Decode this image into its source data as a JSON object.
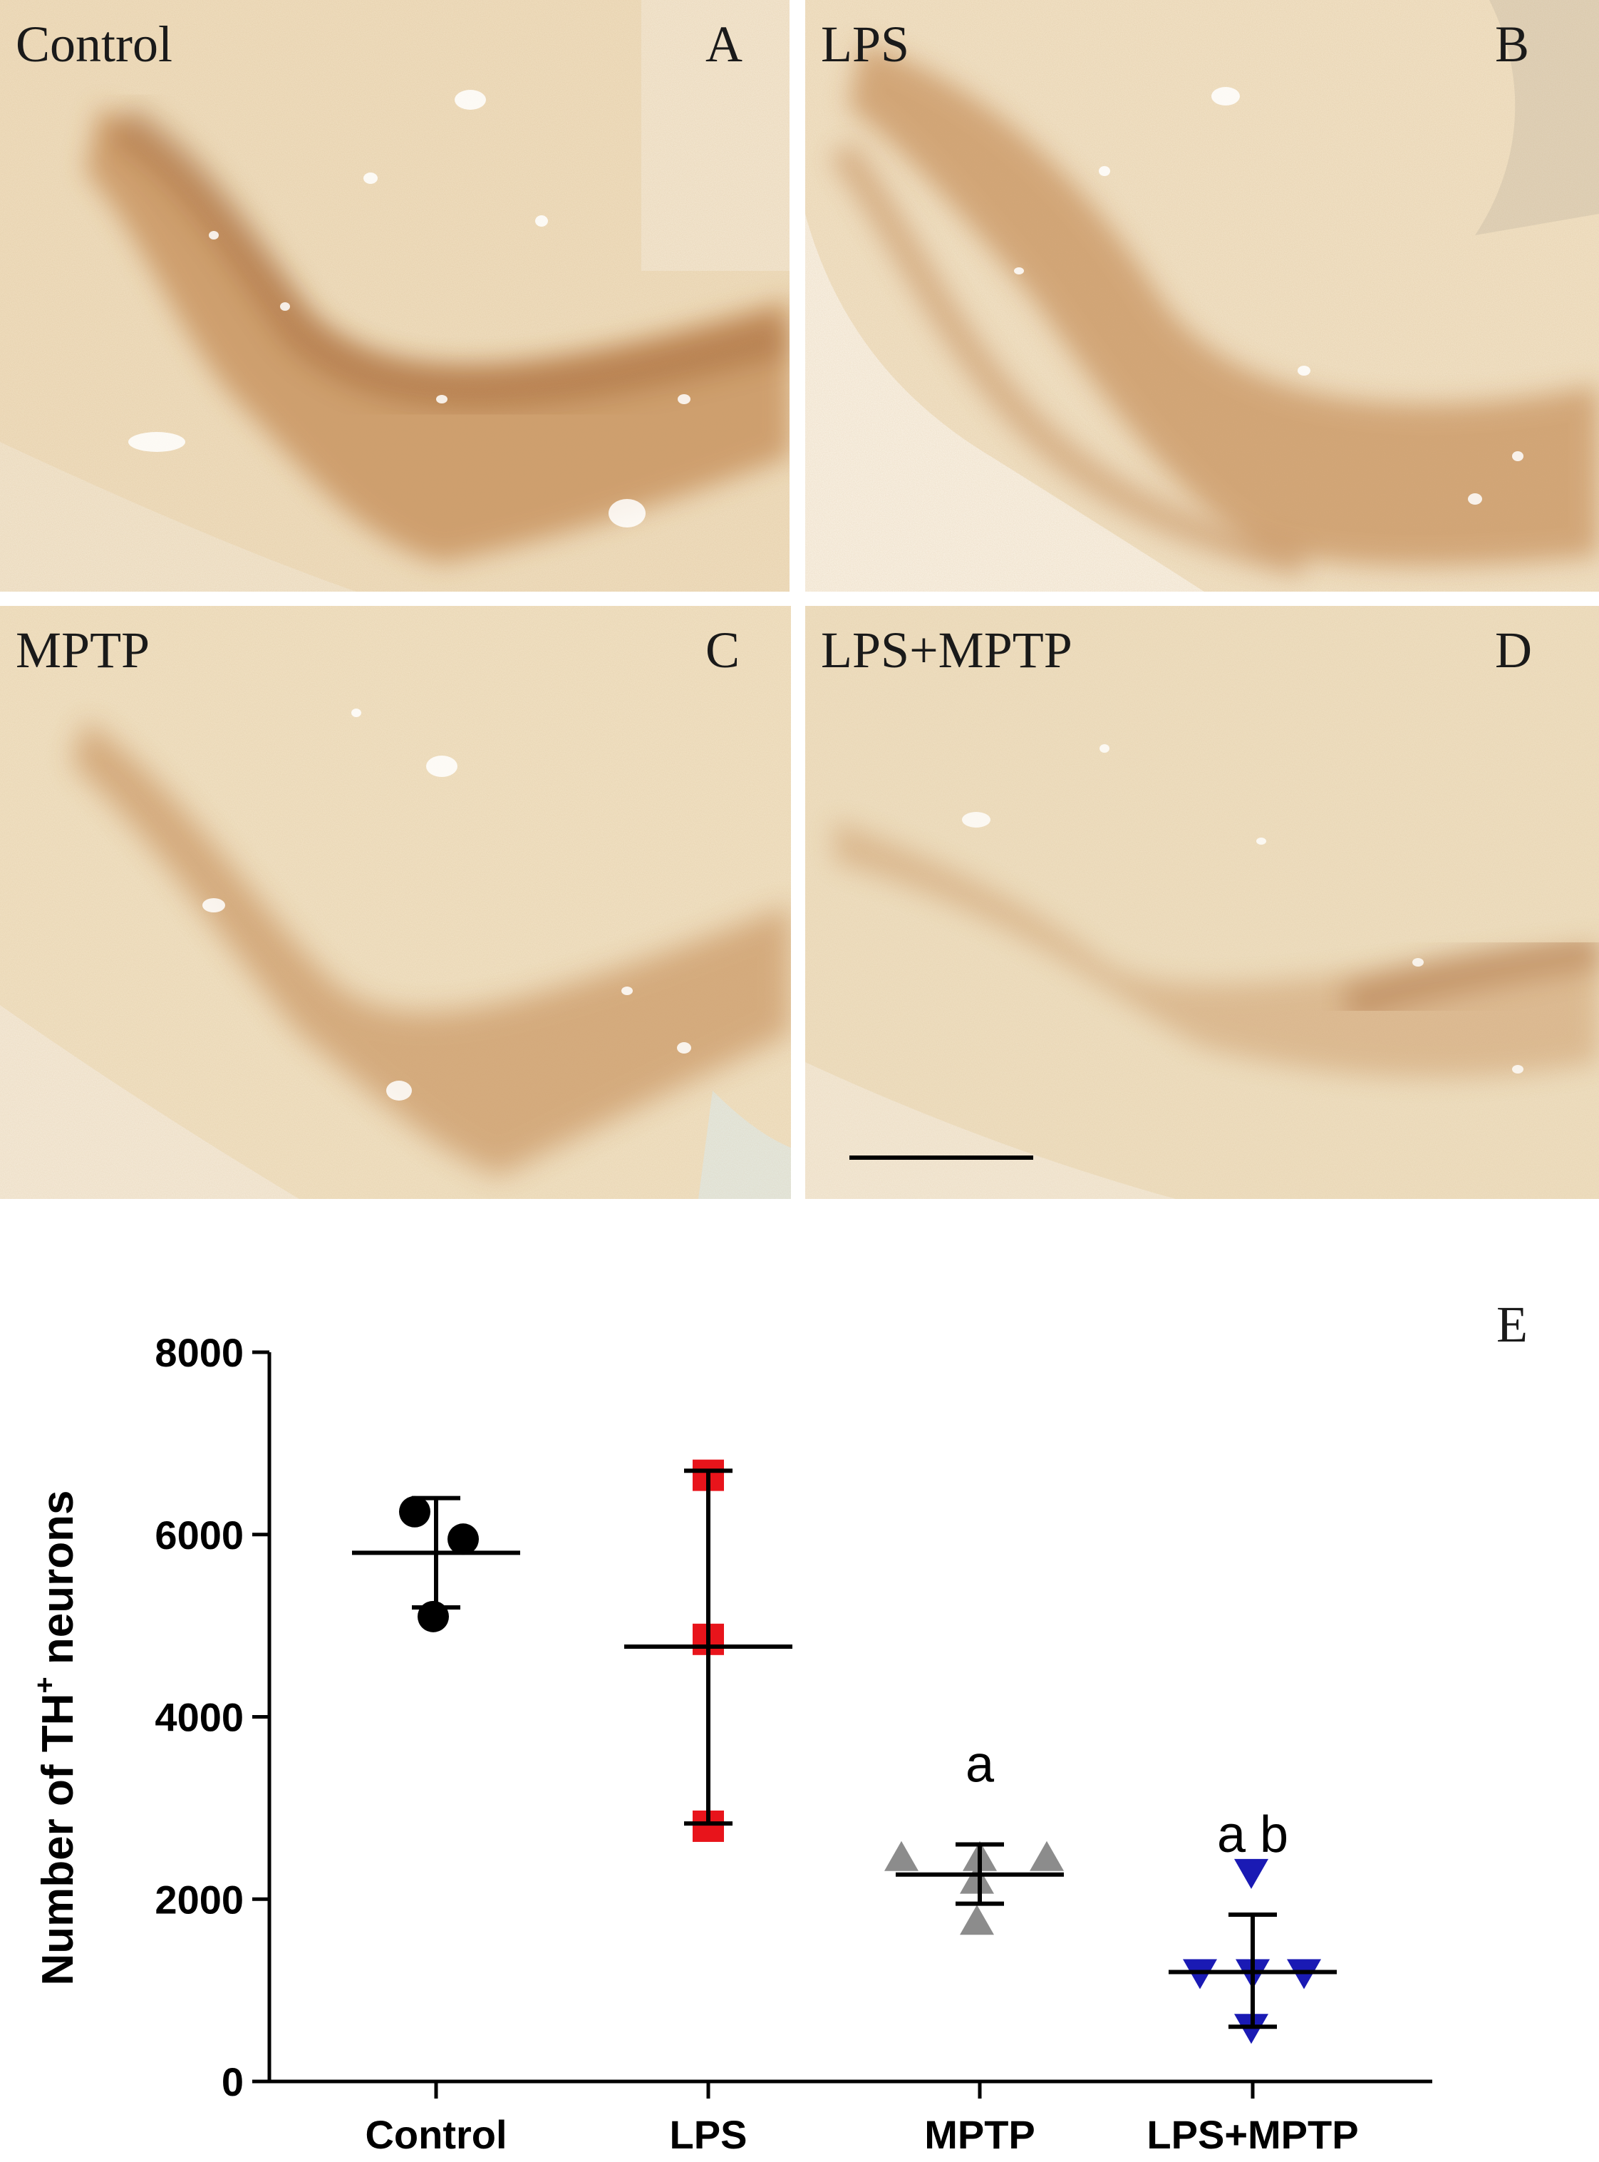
{
  "panels": [
    {
      "id": "A",
      "group_label": "Control",
      "letter": "A",
      "staining": "strong"
    },
    {
      "id": "B",
      "group_label": "LPS",
      "letter": "B",
      "staining": "strong"
    },
    {
      "id": "C",
      "group_label": "MPTP",
      "letter": "C",
      "staining": "moderate"
    },
    {
      "id": "D",
      "group_label": "LPS+MPTP",
      "letter": "D",
      "staining": "weak"
    }
  ],
  "colors": {
    "tissue_background": "#efdcb8",
    "stain": "#a25a1f",
    "stain_dark": "#7d3f12",
    "control_marker": "#000000",
    "lps_marker": "#e8141b",
    "mptp_marker": "#8c8c8c",
    "lps_mptp_marker": "#1a1ab4"
  },
  "chart_data": {
    "type": "scatter",
    "panel_letter": "E",
    "ylabel_main": "Number of TH",
    "ylabel_sup": "+",
    "ylabel_tail": " neurons",
    "ylim": [
      0,
      8000
    ],
    "yticks": [
      0,
      2000,
      4000,
      6000,
      8000
    ],
    "categories": [
      "Control",
      "LPS",
      "MPTP",
      "LPS+MPTP"
    ],
    "series": [
      {
        "category": "Control",
        "marker": "circle",
        "color": "#000000",
        "points": [
          6250,
          5950,
          5100
        ],
        "mean": 5800,
        "sd_upper": 6400,
        "sd_lower": 5200,
        "annotation": ""
      },
      {
        "category": "LPS",
        "marker": "square",
        "color": "#e8141b",
        "points": [
          6650,
          4850,
          2800
        ],
        "mean": 4770,
        "sd_upper": 6700,
        "sd_lower": 2830,
        "annotation": ""
      },
      {
        "category": "MPTP",
        "marker": "triangle-up",
        "color": "#8c8c8c",
        "points": [
          2450,
          2450,
          2450,
          2200,
          1750
        ],
        "mean": 2270,
        "sd_upper": 2600,
        "sd_lower": 1950,
        "annotation": "a"
      },
      {
        "category": "LPS+MPTP",
        "marker": "triangle-down",
        "color": "#1a1ab4",
        "points": [
          2300,
          1200,
          1200,
          1200,
          600
        ],
        "mean": 1200,
        "sd_upper": 1830,
        "sd_lower": 600,
        "annotation": "a b"
      }
    ],
    "grid": false,
    "legend": "none"
  }
}
